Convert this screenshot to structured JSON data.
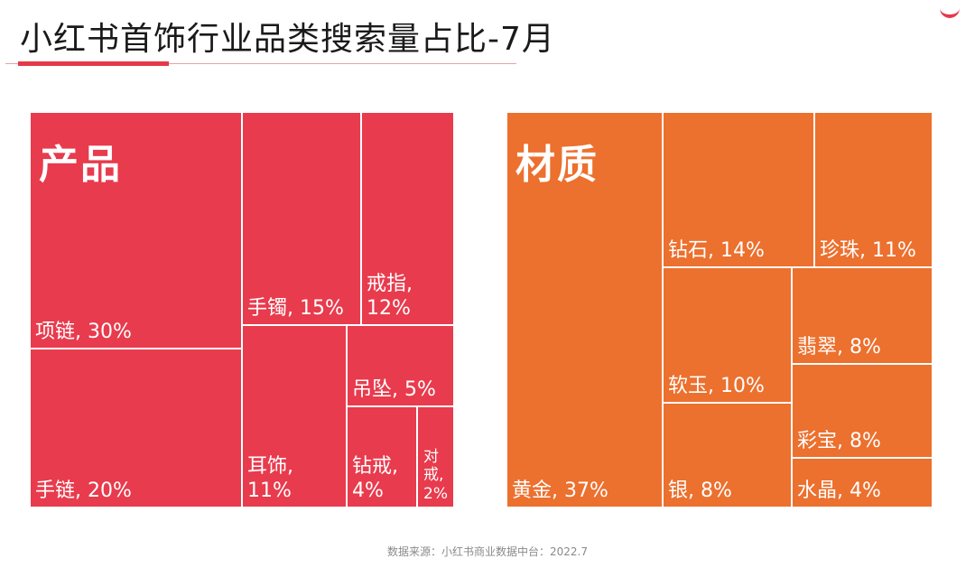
{
  "title": "小红书首饰行业品类搜索量占比-7月",
  "source": "数据来源：小红书商业数据中台：2022.7",
  "colors": {
    "product": "#e83b4d",
    "material": "#ec702e",
    "accent": "#e5394a"
  },
  "chart_data": [
    {
      "type": "treemap",
      "title": "产品",
      "categories": [
        "项链",
        "手链",
        "手镯",
        "戒指",
        "耳饰",
        "吊坠",
        "钻戒",
        "对戒"
      ],
      "values": [
        30,
        20,
        15,
        12,
        11,
        5,
        4,
        2
      ],
      "unit": "%",
      "labels": [
        "项链, 30%",
        "手链, 20%",
        "手镯, 15%",
        "戒指,\n12%",
        "耳饰,\n11%",
        "吊坠, 5%",
        "钻戒,\n4%",
        "对\n戒,\n2%"
      ]
    },
    {
      "type": "treemap",
      "title": "材质",
      "categories": [
        "黄金",
        "钻石",
        "珍珠",
        "软玉",
        "银",
        "翡翠",
        "彩宝",
        "水晶"
      ],
      "values": [
        37,
        14,
        11,
        10,
        8,
        8,
        8,
        4
      ],
      "unit": "%",
      "labels": [
        "黄金, 37%",
        "钻石, 14%",
        "珍珠, 11%",
        "软玉, 10%",
        "银, 8%",
        "翡翠, 8%",
        "彩宝, 8%",
        "水晶, 4%"
      ]
    }
  ]
}
